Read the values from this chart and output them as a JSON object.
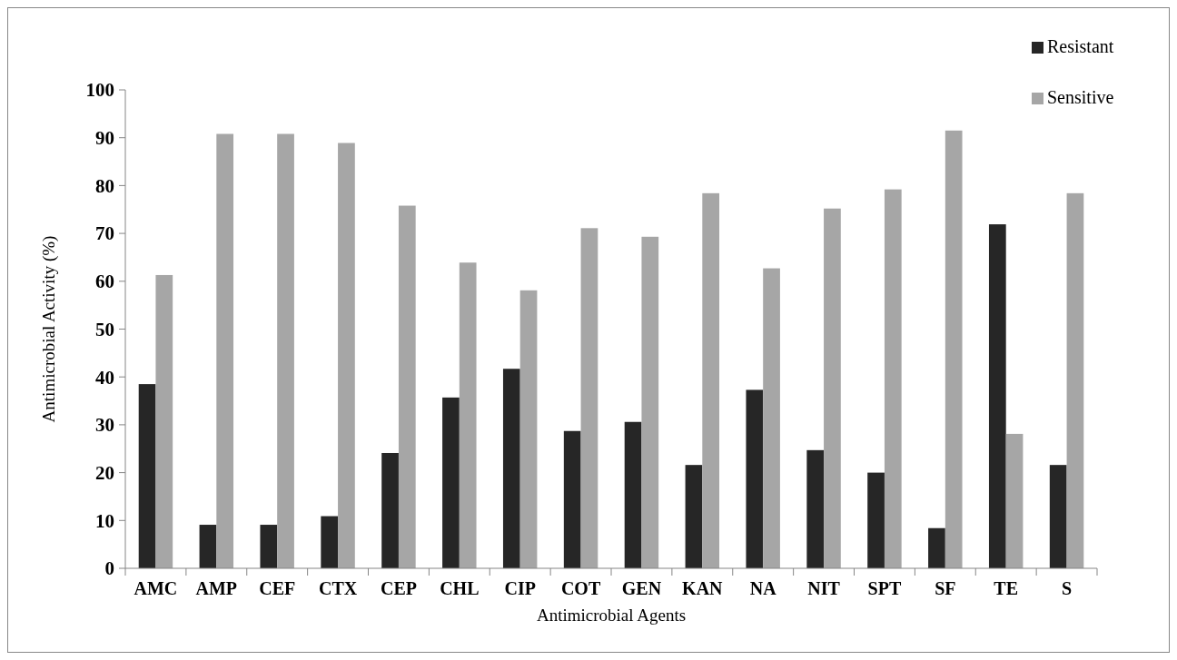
{
  "chart_data": {
    "type": "bar",
    "xlabel": "Antimicrobial Agents",
    "ylabel": "Antimicrobial Activity (%)",
    "categories": [
      "AMC",
      "AMP",
      "CEF",
      "CTX",
      "CEP",
      "CHL",
      "CIP",
      "COT",
      "GEN",
      "KAN",
      "NA",
      "NIT",
      "SPT",
      "SF",
      "TE",
      "S"
    ],
    "series": [
      {
        "name": "Resistant",
        "color": "#262626",
        "values": [
          38.5,
          9.1,
          9.1,
          10.9,
          24.1,
          35.7,
          41.7,
          28.7,
          30.6,
          21.6,
          37.3,
          24.7,
          20.0,
          8.4,
          71.9,
          21.6
        ]
      },
      {
        "name": "Sensitive",
        "color": "#a6a6a6",
        "values": [
          61.3,
          90.8,
          90.8,
          88.9,
          75.8,
          63.9,
          58.1,
          71.1,
          69.3,
          78.4,
          62.7,
          75.2,
          79.2,
          91.5,
          28.1,
          78.4
        ]
      }
    ],
    "ylim": [
      0,
      100
    ],
    "yticks": [
      0,
      10,
      20,
      30,
      40,
      50,
      60,
      70,
      80,
      90,
      100
    ],
    "grid": false,
    "legend": "top right"
  }
}
